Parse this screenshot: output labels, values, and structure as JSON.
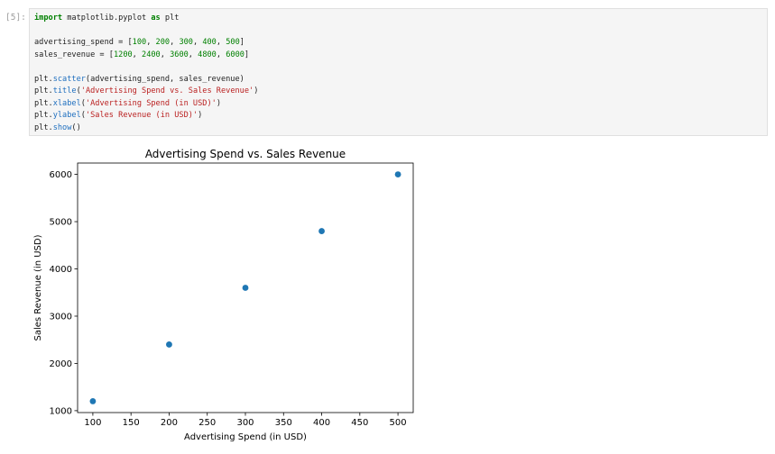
{
  "cell": {
    "prompt": "[5]:",
    "code_lines": [
      [
        {
          "t": "import",
          "c": "kw"
        },
        {
          "t": " matplotlib.pyplot "
        },
        {
          "t": "as",
          "c": "kw"
        },
        {
          "t": " plt"
        }
      ],
      [],
      [
        {
          "t": "advertising_spend = ["
        },
        {
          "t": "100",
          "c": "num"
        },
        {
          "t": ", "
        },
        {
          "t": "200",
          "c": "num"
        },
        {
          "t": ", "
        },
        {
          "t": "300",
          "c": "num"
        },
        {
          "t": ", "
        },
        {
          "t": "400",
          "c": "num"
        },
        {
          "t": ", "
        },
        {
          "t": "500",
          "c": "num"
        },
        {
          "t": "]"
        }
      ],
      [
        {
          "t": "sales_revenue = ["
        },
        {
          "t": "1200",
          "c": "num"
        },
        {
          "t": ", "
        },
        {
          "t": "2400",
          "c": "num"
        },
        {
          "t": ", "
        },
        {
          "t": "3600",
          "c": "num"
        },
        {
          "t": ", "
        },
        {
          "t": "4800",
          "c": "num"
        },
        {
          "t": ", "
        },
        {
          "t": "6000",
          "c": "num"
        },
        {
          "t": "]"
        }
      ],
      [],
      [
        {
          "t": "plt."
        },
        {
          "t": "scatter",
          "c": "fn"
        },
        {
          "t": "(advertising_spend, sales_revenue)"
        }
      ],
      [
        {
          "t": "plt."
        },
        {
          "t": "title",
          "c": "fn"
        },
        {
          "t": "("
        },
        {
          "t": "'Advertising Spend vs. Sales Revenue'",
          "c": "str"
        },
        {
          "t": ")"
        }
      ],
      [
        {
          "t": "plt."
        },
        {
          "t": "xlabel",
          "c": "fn"
        },
        {
          "t": "("
        },
        {
          "t": "'Advertising Spend (in USD)'",
          "c": "str"
        },
        {
          "t": ")"
        }
      ],
      [
        {
          "t": "plt."
        },
        {
          "t": "ylabel",
          "c": "fn"
        },
        {
          "t": "("
        },
        {
          "t": "'Sales Revenue (in USD)'",
          "c": "str"
        },
        {
          "t": ")"
        }
      ],
      [
        {
          "t": "plt."
        },
        {
          "t": "show",
          "c": "fn"
        },
        {
          "t": "()"
        }
      ]
    ]
  },
  "chart_data": {
    "type": "scatter",
    "title": "Advertising Spend vs. Sales Revenue",
    "xlabel": "Advertising Spend (in USD)",
    "ylabel": "Sales Revenue (in USD)",
    "x": [
      100,
      200,
      300,
      400,
      500
    ],
    "y": [
      1200,
      2400,
      3600,
      4800,
      6000
    ],
    "xlim": [
      80,
      520
    ],
    "ylim": [
      960,
      6240
    ],
    "xticks": [
      100,
      150,
      200,
      250,
      300,
      350,
      400,
      450,
      500
    ],
    "yticks": [
      1000,
      2000,
      3000,
      4000,
      5000,
      6000
    ],
    "marker_color": "#1f77b4",
    "grid": false
  }
}
